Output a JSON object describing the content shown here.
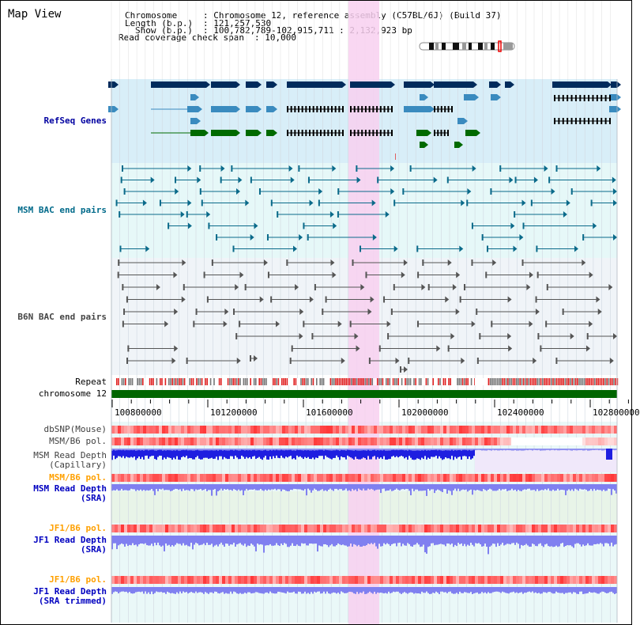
{
  "window_title": "Map View",
  "header": {
    "chromosome_key": "Chromosome",
    "chromosome_val": ": Chromosome 12, reference assembly (C57BL/6J) (Build 37)",
    "length_key": "Length (b.p.)",
    "length_val": ": 121,257,530",
    "show_key": "Show (b.p.)",
    "show_val": ": 100,782,789-102,915,711 : 2,132,923 bp",
    "coverage_key": "Read coverage check span",
    "coverage_val": ": 10,000"
  },
  "tracks": [
    {
      "label_lines": [
        "RefSeq Genes"
      ],
      "color": "#0000a0"
    },
    {
      "label_lines": [
        "MSM BAC end pairs"
      ],
      "color": "#006a8a"
    },
    {
      "label_lines": [
        "B6N BAC end pairs"
      ],
      "color": "#444444"
    },
    {
      "label_lines": [
        "Repeat"
      ],
      "color": "#000000"
    },
    {
      "label_lines": [
        "chromosome 12"
      ],
      "color": "#000000"
    },
    {
      "label_lines": [
        "dbSNP(Mouse)"
      ],
      "color": "#404040"
    },
    {
      "label_lines": [
        "MSM/B6 pol."
      ],
      "color": "#404040"
    },
    {
      "label_lines": [
        "MSM Read Depth",
        "(Capillary)"
      ],
      "color": "#404040"
    },
    {
      "label_lines": [
        "MSM/B6 pol."
      ],
      "color": "#ffa000"
    },
    {
      "label_lines": [
        "MSM Read Depth",
        "(SRA)"
      ],
      "color": "#0000c0"
    },
    {
      "label_lines": [
        "JF1/B6 pol."
      ],
      "color": "#ffa000"
    },
    {
      "label_lines": [
        "JF1 Read Depth",
        "(SRA)"
      ],
      "color": "#0000c0"
    },
    {
      "label_lines": [
        "JF1/B6 pol."
      ],
      "color": "#ffa000"
    },
    {
      "label_lines": [
        "JF1 Read Depth",
        "(SRA trimmed)"
      ],
      "color": "#0000c0"
    }
  ],
  "ruler": {
    "ticks": [
      "100800000",
      "101200000",
      "101600000",
      "102000000",
      "102400000",
      "102800000"
    ]
  },
  "colors": {
    "gene_dark": "#002b5c",
    "gene_mid": "#3a8bbf",
    "gene_green": "#006a00",
    "msm_bac": "#0a6a8a",
    "b6n_bac": "#555555",
    "highlight": "#f8d0f0",
    "chromosome_bar": "#006600",
    "depth_blue": "#1e1ee0",
    "depth_light": "#8080f0"
  }
}
